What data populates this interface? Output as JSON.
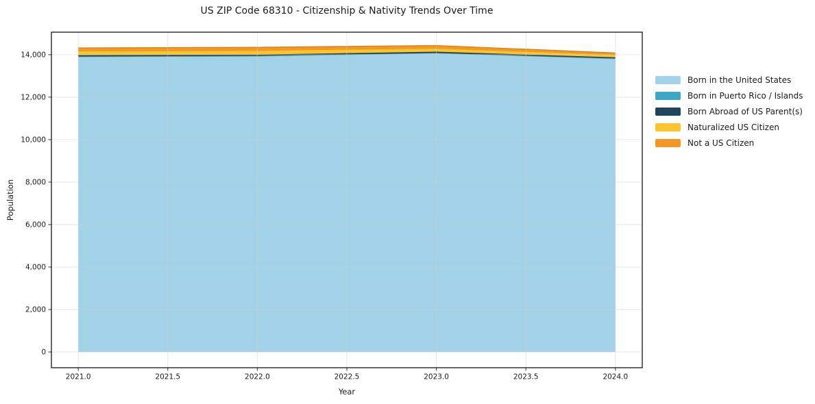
{
  "chart_data": {
    "type": "area",
    "stacked": true,
    "title": "US ZIP Code 68310 - Citizenship & Nativity Trends Over Time",
    "xlabel": "Year",
    "ylabel": "Population",
    "x": [
      2021,
      2022,
      2023,
      2024
    ],
    "series": [
      {
        "name": "Born in the United States",
        "color": "#a2d2e8",
        "values": [
          13900,
          13930,
          14070,
          13810
        ]
      },
      {
        "name": "Born in Puerto Rico / Islands",
        "color": "#3da8c5",
        "values": [
          20,
          20,
          20,
          20
        ]
      },
      {
        "name": "Born Abroad of US Parent(s)",
        "color": "#1f455a",
        "values": [
          55,
          55,
          50,
          45
        ]
      },
      {
        "name": "Naturalized US Citizen",
        "color": "#fbc32d",
        "values": [
          200,
          195,
          165,
          130
        ]
      },
      {
        "name": "Not a US Citizen",
        "color": "#f79722",
        "values": [
          145,
          150,
          130,
          80
        ]
      }
    ],
    "xlim": [
      2020.85,
      2024.15
    ],
    "ylim": [
      -740,
      15060
    ],
    "xticks": {
      "values": [
        2021.0,
        2021.5,
        2022.0,
        2022.5,
        2023.0,
        2023.5,
        2024.0
      ],
      "labels": [
        "2021.0",
        "2021.5",
        "2022.0",
        "2022.5",
        "2023.0",
        "2023.5",
        "2024.0"
      ]
    },
    "yticks": {
      "values": [
        0,
        2000,
        4000,
        6000,
        8000,
        10000,
        12000,
        14000
      ],
      "labels": [
        "0",
        "2,000",
        "4,000",
        "6,000",
        "8,000",
        "10,000",
        "12,000",
        "14,000"
      ]
    },
    "grid": true,
    "legend_position": "outside-right",
    "colors": {
      "spine": "#000000",
      "grid": "#d0d0d0",
      "tick": "#333333",
      "text": "#1a1a1a"
    }
  }
}
